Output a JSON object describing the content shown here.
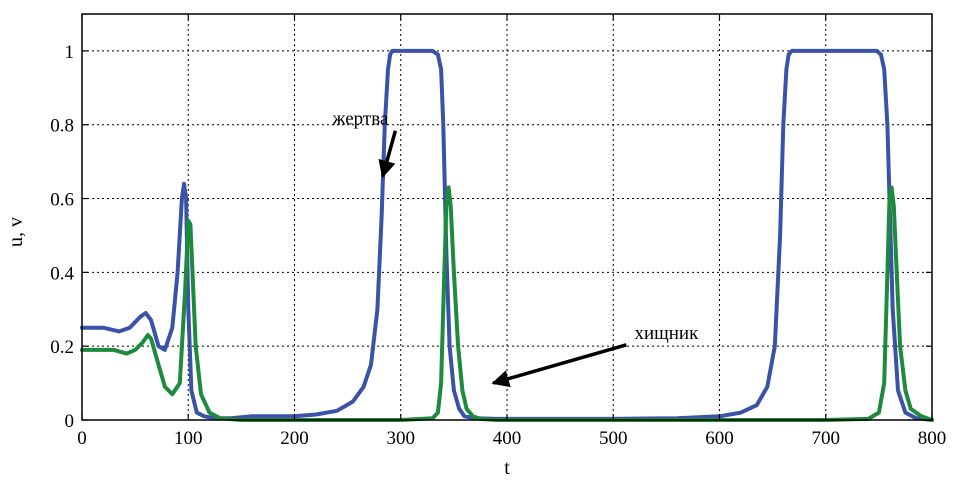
{
  "chart_data": {
    "type": "line",
    "xlabel": "t",
    "ylabel": "u, v",
    "xlim": [
      0,
      800
    ],
    "ylim": [
      0,
      1.1
    ],
    "x_ticks": [
      "0",
      "100",
      "200",
      "300",
      "400",
      "500",
      "600",
      "700",
      "800"
    ],
    "y_ticks": [
      "0",
      "0.2",
      "0.4",
      "0.6",
      "0.8",
      "1"
    ],
    "grid": true,
    "series": [
      {
        "color": "#3a52a8",
        "x": [
          0,
          20,
          35,
          45,
          55,
          60,
          65,
          72,
          78,
          85,
          90,
          94,
          96,
          98,
          100,
          103,
          108,
          115,
          125,
          140,
          160,
          200,
          220,
          240,
          255,
          265,
          272,
          278,
          282,
          285,
          288,
          290,
          292,
          300,
          320,
          330,
          335,
          338,
          340,
          343,
          346,
          350,
          355,
          360,
          370,
          390,
          420,
          500,
          560,
          600,
          620,
          635,
          645,
          652,
          657,
          660,
          663,
          665,
          668,
          672,
          700,
          740,
          748,
          752,
          755,
          758,
          760,
          763,
          768,
          775,
          785,
          800
        ],
        "values": [
          0.25,
          0.25,
          0.24,
          0.25,
          0.28,
          0.29,
          0.27,
          0.2,
          0.19,
          0.25,
          0.4,
          0.6,
          0.64,
          0.6,
          0.3,
          0.08,
          0.02,
          0.01,
          0.005,
          0.005,
          0.01,
          0.01,
          0.015,
          0.025,
          0.05,
          0.09,
          0.15,
          0.3,
          0.55,
          0.8,
          0.95,
          0.99,
          1.0,
          1.0,
          1.0,
          1.0,
          0.99,
          0.95,
          0.8,
          0.45,
          0.2,
          0.08,
          0.03,
          0.01,
          0.005,
          0.003,
          0.003,
          0.003,
          0.005,
          0.01,
          0.02,
          0.04,
          0.09,
          0.2,
          0.5,
          0.8,
          0.95,
          0.99,
          1.0,
          1.0,
          1.0,
          1.0,
          1.0,
          0.99,
          0.95,
          0.8,
          0.6,
          0.3,
          0.08,
          0.02,
          0.005,
          0.0
        ]
      },
      {
        "color": "#1d8a3e",
        "x": [
          0,
          15,
          30,
          42,
          50,
          57,
          62,
          65,
          70,
          78,
          85,
          92,
          97,
          100,
          102,
          104,
          107,
          112,
          120,
          130,
          150,
          200,
          300,
          330,
          335,
          338,
          341,
          343,
          345,
          347,
          350,
          354,
          358,
          362,
          368,
          375,
          390,
          450,
          550,
          650,
          700,
          740,
          750,
          755,
          758,
          760,
          762,
          764,
          766,
          770,
          775,
          780,
          790,
          800
        ],
        "values": [
          0.19,
          0.19,
          0.19,
          0.18,
          0.19,
          0.21,
          0.23,
          0.22,
          0.17,
          0.09,
          0.07,
          0.1,
          0.35,
          0.54,
          0.53,
          0.4,
          0.2,
          0.07,
          0.02,
          0.005,
          0.0,
          0.0,
          0.0,
          0.005,
          0.02,
          0.1,
          0.4,
          0.58,
          0.63,
          0.58,
          0.4,
          0.2,
          0.08,
          0.03,
          0.01,
          0.003,
          0.0,
          0.0,
          0.0,
          0.0,
          0.0,
          0.003,
          0.02,
          0.1,
          0.4,
          0.6,
          0.63,
          0.58,
          0.45,
          0.2,
          0.08,
          0.03,
          0.01,
          0.0
        ]
      }
    ],
    "annotations": [
      {
        "text": "жертва",
        "x": 262,
        "y": 0.8,
        "arrow_to_x": 283,
        "arrow_to_y": 0.66
      },
      {
        "text": "хищник",
        "x": 550,
        "y": 0.22,
        "arrow_to_x": 387,
        "arrow_to_y": 0.1
      }
    ]
  }
}
